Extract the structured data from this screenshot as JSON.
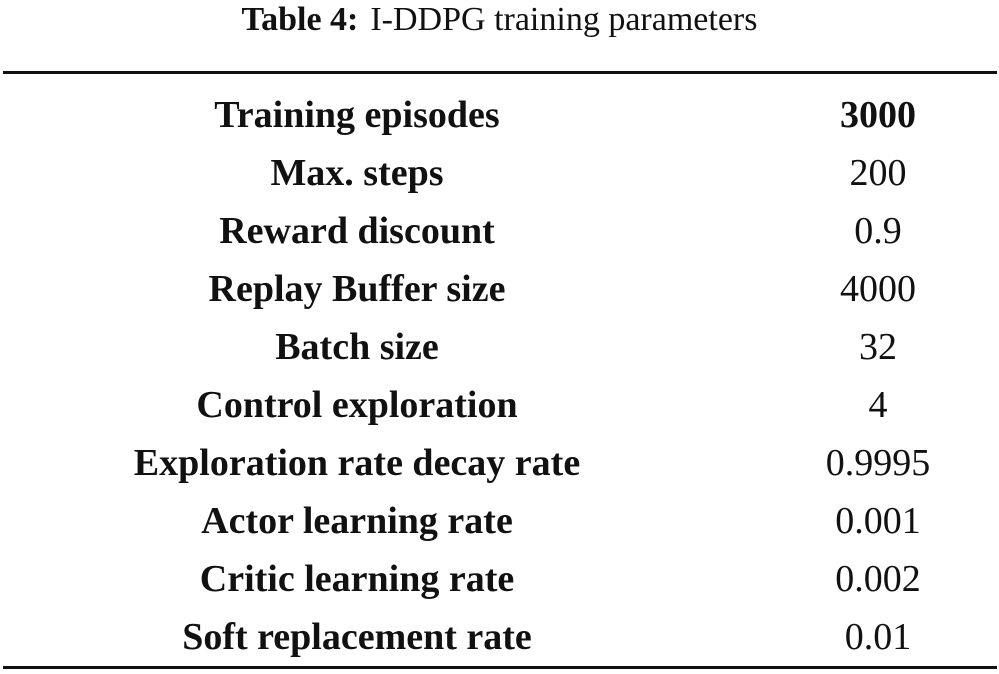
{
  "caption": {
    "label": "Table 4:",
    "text": "I-DDPG training parameters"
  },
  "table": {
    "rows": [
      [
        "Training episodes",
        "3000"
      ],
      [
        "Max. steps",
        "200"
      ],
      [
        "Reward discount",
        "0.9"
      ],
      [
        "Replay Buffer size",
        "4000"
      ],
      [
        "Batch size",
        "32"
      ],
      [
        "Control exploration",
        "4"
      ],
      [
        "Exploration rate decay rate",
        "0.9995"
      ],
      [
        "Actor learning rate",
        "0.001"
      ],
      [
        "Critic learning rate",
        "0.002"
      ],
      [
        "Soft replacement rate",
        "0.01"
      ]
    ]
  }
}
